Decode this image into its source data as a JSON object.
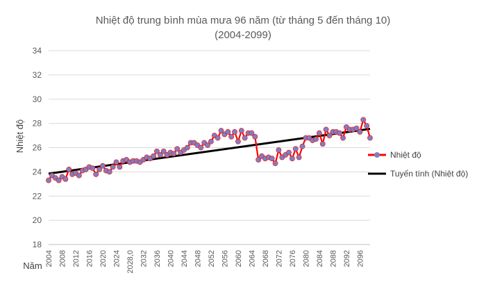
{
  "chart_data": {
    "type": "line",
    "title": "Nhiệt độ trung bình mùa mưa 96 năm (từ tháng 5 đến tháng 10)",
    "subtitle": "(2004-2099)",
    "xlabel": "Năm",
    "ylabel": "Nhiệt độ",
    "ylim": [
      18,
      34
    ],
    "yticks": [
      18,
      20,
      22,
      24,
      26,
      28,
      30,
      32,
      34
    ],
    "xlim": [
      2004,
      2099
    ],
    "xtick_labels": [
      "2004",
      "2008",
      "2012",
      "2016",
      "2020",
      "2024",
      "2028,0",
      "2032",
      "2036",
      "2040",
      "2044",
      "2048",
      "2052",
      "2056",
      "2060",
      "2064",
      "2068",
      "2072",
      "2076",
      "2080",
      "2084",
      "2088",
      "2092",
      "2096"
    ],
    "grid": "horizontal",
    "legend_position": "right",
    "series": [
      {
        "name": "Nhiệt độ",
        "color": "#ff0000",
        "marker_color": "#7f7fbf",
        "x_start": 2004,
        "values": [
          23.3,
          23.7,
          23.5,
          23.3,
          23.6,
          23.4,
          24.2,
          23.8,
          23.9,
          23.7,
          24.1,
          24.2,
          24.4,
          24.3,
          23.8,
          24.2,
          24.5,
          24.1,
          24.0,
          24.4,
          24.8,
          24.4,
          24.9,
          25.0,
          24.8,
          24.9,
          24.9,
          24.8,
          25.0,
          25.2,
          25.1,
          25.3,
          25.7,
          25.4,
          25.7,
          25.4,
          25.6,
          25.5,
          25.9,
          25.6,
          25.8,
          26.0,
          26.4,
          26.4,
          26.2,
          26.0,
          26.4,
          26.2,
          26.5,
          27.0,
          26.8,
          27.4,
          27.1,
          27.3,
          26.9,
          27.3,
          26.5,
          27.4,
          26.8,
          27.2,
          27.2,
          26.9,
          25.0,
          25.3,
          25.1,
          25.2,
          25.1,
          24.7,
          25.8,
          25.2,
          25.4,
          25.6,
          25.1,
          25.9,
          25.2,
          26.1,
          26.8,
          26.8,
          26.6,
          26.7,
          27.2,
          26.3,
          27.5,
          27.0,
          27.3,
          27.3,
          27.2,
          26.8,
          27.7,
          27.5,
          27.5,
          27.6,
          27.3,
          28.3,
          27.8,
          26.8
        ]
      },
      {
        "name": "Tuyến tính (Nhiệt độ)",
        "color": "#000000",
        "type": "linear-trend",
        "x": [
          2004,
          2099
        ],
        "y": [
          23.85,
          27.55
        ]
      }
    ]
  }
}
